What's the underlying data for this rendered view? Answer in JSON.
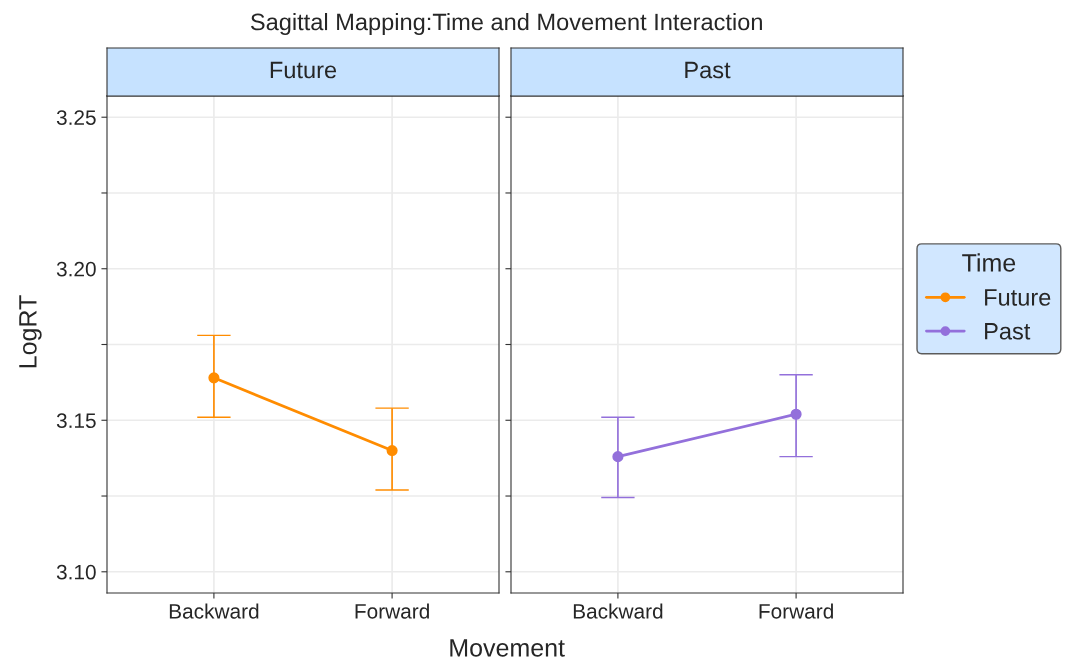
{
  "chart_data": [
    {
      "type": "line",
      "title": "Sagittal Mapping:Time and Movement Interaction",
      "subtitle": "Future",
      "xlabel": "Movement",
      "ylabel": "LogRT",
      "legend_title": "Time",
      "legend": "right",
      "grid": true,
      "marker": "circle",
      "line_style": "solid",
      "categories": [
        "Backward",
        "Forward"
      ],
      "series": [
        {
          "name": "Future",
          "color": "#ff8c00",
          "values": [
            3.164,
            3.14
          ],
          "errors": [
            [
              3.151,
              3.178
            ],
            [
              3.127,
              3.154
            ]
          ]
        }
      ],
      "ylim": [
        3.093,
        3.257
      ],
      "yticks": [
        {
          "value": 3.1,
          "label": "3.10"
        },
        {
          "value": 3.125,
          "label": null
        },
        {
          "value": 3.15,
          "label": "3.15"
        },
        {
          "value": 3.175,
          "label": null
        },
        {
          "value": 3.2,
          "label": "3.20"
        },
        {
          "value": 3.225,
          "label": null
        },
        {
          "value": 3.25,
          "label": "3.25"
        }
      ]
    },
    {
      "type": "line",
      "subtitle": "Past",
      "grid": true,
      "marker": "circle",
      "line_style": "solid",
      "tick_labels": "x",
      "categories": [
        "Backward",
        "Forward"
      ],
      "series": [
        {
          "name": "Past",
          "color": "#9370db",
          "values": [
            3.138,
            3.152
          ],
          "errors": [
            [
              3.1245,
              3.151
            ],
            [
              3.138,
              3.165
            ]
          ]
        }
      ],
      "ylim": [
        3.093,
        3.257
      ],
      "yticks": [
        3.1,
        3.125,
        3.15,
        3.175,
        3.2,
        3.225,
        3.25
      ]
    }
  ]
}
